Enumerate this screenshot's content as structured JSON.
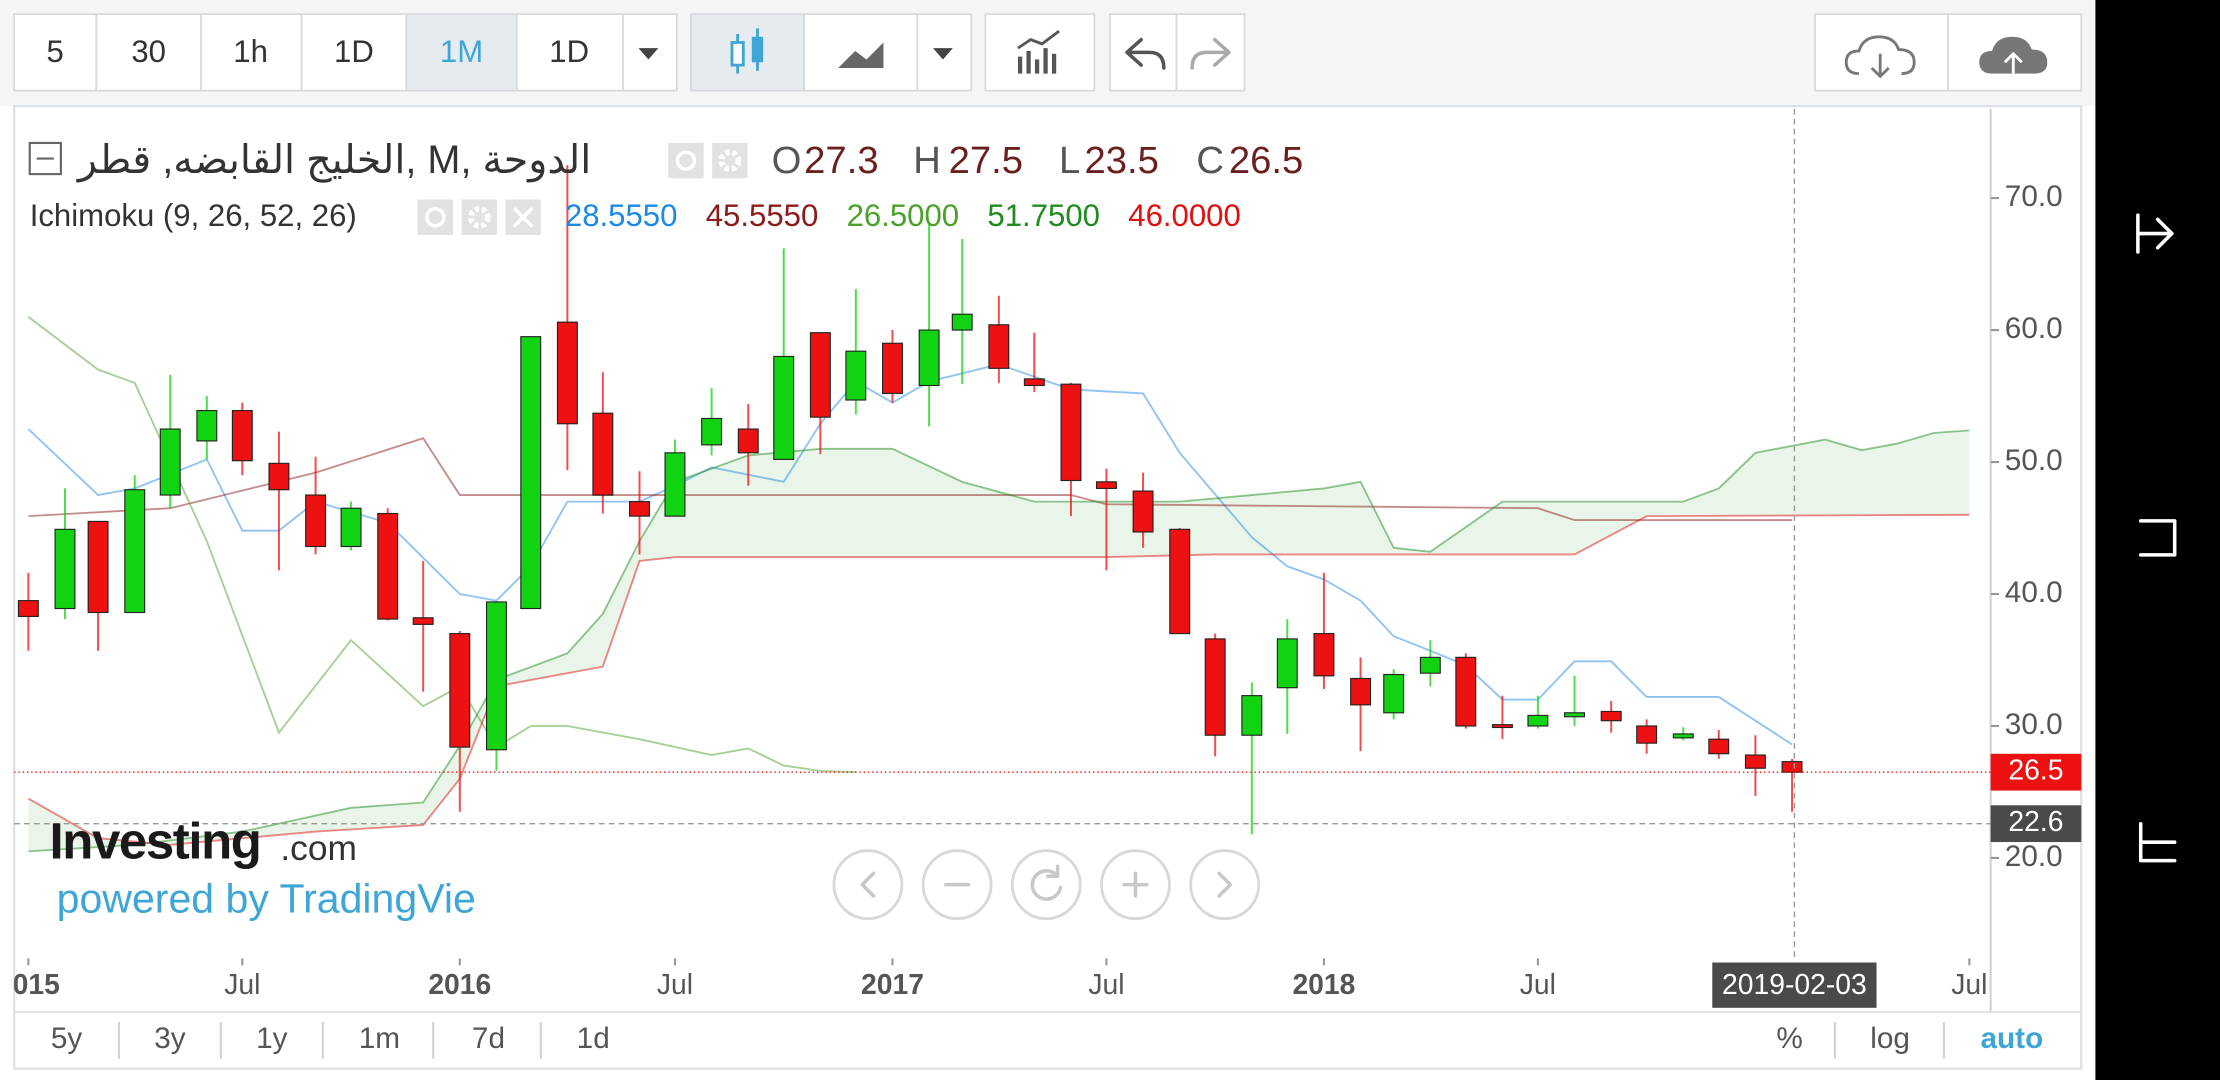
{
  "toolbar": {
    "intervals": [
      "5",
      "30",
      "1h",
      "1D",
      "1M",
      "1D"
    ]
  },
  "header": {
    "title": "الخليج القابضه, قطر, M, الدوحة",
    "ohlc_letters": [
      "O",
      "H",
      "L",
      "C"
    ]
  },
  "watermark": {
    "brand": "Investing",
    "domain": ".com",
    "powered": "powered by TradingVie"
  },
  "range_bar": {
    "ranges": [
      "5y",
      "3y",
      "1y",
      "1m",
      "7d",
      "1d"
    ],
    "scale_options": [
      "%",
      "log",
      "auto"
    ]
  },
  "chart_data": {
    "type": "candlestick",
    "up_color": "#12d312",
    "down_color": "#ee1111",
    "x": [
      "2015-01",
      "2015-02",
      "2015-03",
      "2015-04",
      "2015-05",
      "2015-06",
      "2015-07",
      "2015-08",
      "2015-09",
      "2015-10",
      "2015-11",
      "2015-12",
      "2016-01",
      "2016-02",
      "2016-03",
      "2016-04",
      "2016-05",
      "2016-06",
      "2016-07",
      "2016-08",
      "2016-09",
      "2016-10",
      "2016-11",
      "2016-12",
      "2017-01",
      "2017-02",
      "2017-03",
      "2017-04",
      "2017-05",
      "2017-06",
      "2017-07",
      "2017-08",
      "2017-09",
      "2017-10",
      "2017-11",
      "2017-12",
      "2018-01",
      "2018-02",
      "2018-03",
      "2018-04",
      "2018-05",
      "2018-06",
      "2018-07",
      "2018-08",
      "2018-09",
      "2018-10",
      "2018-11",
      "2018-12",
      "2019-01",
      "2019-02"
    ],
    "open": [
      39.5,
      38.9,
      45.5,
      38.6,
      47.5,
      51.6,
      53.9,
      49.9,
      47.5,
      43.6,
      46.1,
      38.2,
      37,
      28.2,
      38.9,
      60.6,
      53.7,
      47,
      45.9,
      51.3,
      52.5,
      50.2,
      59.8,
      54.7,
      59,
      55.8,
      60,
      60.4,
      56.3,
      55.9,
      48.5,
      47.8,
      44.9,
      36.6,
      29.3,
      32.9,
      37,
      33.6,
      31,
      34,
      35.2,
      30.1,
      30,
      30.7,
      31.1,
      30,
      29.1,
      29,
      27.8,
      27.3
    ],
    "high": [
      41.6,
      48,
      45.5,
      49,
      56.6,
      55,
      54.5,
      52.3,
      50.4,
      47,
      46.5,
      42.5,
      37.2,
      39.4,
      59.5,
      72.5,
      56.8,
      49.3,
      51.7,
      55.6,
      54.4,
      66.2,
      59.8,
      63.1,
      60,
      68,
      66.9,
      62.6,
      59.8,
      56,
      49.5,
      49.2,
      45,
      37,
      33.3,
      38.1,
      41.6,
      35.2,
      34.3,
      36.5,
      35.5,
      32.3,
      32.3,
      33.8,
      31.9,
      30.5,
      29.9,
      29.7,
      29.3,
      27.5
    ],
    "low": [
      35.7,
      38.1,
      35.7,
      38.6,
      46.5,
      50.2,
      49,
      41.8,
      43,
      43.3,
      38,
      32.6,
      23.5,
      26.6,
      38.9,
      49.4,
      46.1,
      43,
      45.9,
      50.5,
      48.2,
      50.2,
      50.6,
      53.6,
      54.5,
      52.7,
      55.9,
      56,
      55.3,
      45.9,
      41.8,
      43.5,
      37,
      27.7,
      21.8,
      29.4,
      32.8,
      28.1,
      30.5,
      33,
      29.8,
      29,
      29.8,
      30,
      29.5,
      27.9,
      28.9,
      27.5,
      24.7,
      23.5
    ],
    "close": [
      38.3,
      44.9,
      38.6,
      47.9,
      52.5,
      53.9,
      50.1,
      47.9,
      43.6,
      46.5,
      38.1,
      37.7,
      28.4,
      39.4,
      59.5,
      52.9,
      47.5,
      45.9,
      50.7,
      53.3,
      50.7,
      58,
      53.4,
      58.4,
      55.2,
      60,
      61.2,
      57.1,
      55.8,
      48.6,
      48,
      44.7,
      37,
      29.3,
      32.3,
      36.6,
      33.8,
      31.6,
      33.9,
      35.2,
      30,
      29.9,
      30.8,
      31,
      30.4,
      28.7,
      29.4,
      27.9,
      26.8,
      26.5
    ],
    "indicator": {
      "label": "Ichimoku (9, 26, 52, 26)",
      "lines": [
        {
          "color": "#1e88e5",
          "last": {
            "value": 28.555,
            "label": "28.5550"
          },
          "x": [
            "2015-01",
            "2015-03",
            "2015-04",
            "2015-06",
            "2015-07",
            "2015-08",
            "2015-09",
            "2015-11",
            "2016-01",
            "2016-02",
            "2016-03",
            "2016-04",
            "2016-06",
            "2016-07",
            "2016-08",
            "2016-10",
            "2016-11",
            "2016-12",
            "2017-01",
            "2017-02",
            "2017-04",
            "2017-06",
            "2017-08",
            "2017-09",
            "2017-11",
            "2017-12",
            "2018-01",
            "2018-02",
            "2018-03",
            "2018-04",
            "2018-05",
            "2018-06",
            "2018-07",
            "2018-08",
            "2018-09",
            "2018-10",
            "2018-12",
            "2019-01",
            "2019-02"
          ],
          "values": [
            52.5,
            47.5,
            48,
            50.2,
            44.8,
            44.8,
            47,
            45.4,
            40,
            39.5,
            42.1,
            47,
            47,
            48.2,
            49.6,
            48.5,
            52.9,
            56.1,
            54.5,
            56.1,
            57.4,
            55.5,
            55.2,
            50.7,
            44.3,
            42.1,
            41.1,
            39.5,
            36.8,
            35.7,
            34.6,
            32,
            32,
            34.9,
            34.9,
            32.2,
            32.2,
            30.4,
            28.6
          ]
        },
        {
          "color": "#8b1a1a",
          "last": {
            "value": 45.555,
            "label": "45.5550"
          },
          "x": [
            "2015-01",
            "2015-05",
            "2015-09",
            "2015-12",
            "2016-01",
            "2017-06",
            "2017-07",
            "2018-07",
            "2018-08",
            "2019-02"
          ],
          "values": [
            45.9,
            46.5,
            49.2,
            51.8,
            47.5,
            47.5,
            46.8,
            46.5,
            45.6,
            45.6
          ]
        },
        {
          "color": "#4ca02c",
          "last": {
            "value": 26.5,
            "label": "26.5000"
          },
          "x": [
            "2015-01",
            "2015-03",
            "2015-04",
            "2015-06",
            "2015-08",
            "2015-10",
            "2015-12",
            "2016-01",
            "2016-02",
            "2016-03",
            "2016-04",
            "2016-06",
            "2016-08",
            "2016-09",
            "2016-10",
            "2016-11",
            "2016-12"
          ],
          "values": [
            61,
            57,
            56,
            44,
            29.5,
            36.5,
            31.5,
            33,
            28.4,
            30,
            30,
            29,
            27.8,
            28.3,
            27,
            26.6,
            26.5
          ]
        },
        {
          "color": "#1e8c1e",
          "last": {
            "value": 51.75,
            "label": "51.7500"
          },
          "x": [
            "2015-01",
            "2015-04",
            "2015-07",
            "2015-10",
            "2015-12",
            "2016-01",
            "2016-02",
            "2016-04",
            "2016-05",
            "2016-06",
            "2016-07",
            "2016-09",
            "2016-11",
            "2017-01",
            "2017-03",
            "2017-05",
            "2017-07",
            "2017-09",
            "2017-11",
            "2018-01",
            "2018-02",
            "2018-03",
            "2018-04",
            "2018-06",
            "2018-09",
            "2018-11",
            "2018-12",
            "2019-01",
            "2019-03",
            "2019-04",
            "2019-05",
            "2019-06",
            "2019-07"
          ],
          "values": [
            20.5,
            21,
            22,
            23.8,
            24.2,
            28.5,
            33.5,
            35.5,
            38.5,
            44,
            48.5,
            50.5,
            51,
            51,
            48.5,
            47,
            47,
            47,
            47.5,
            48,
            48.5,
            43.5,
            43.2,
            47,
            47,
            47,
            48,
            50.7,
            51.7,
            50.9,
            51.4,
            52.2,
            52.4
          ]
        },
        {
          "color": "#e01010",
          "last": {
            "value": 46,
            "label": "46.0000"
          },
          "x": [
            "2015-01",
            "2015-03",
            "2015-05",
            "2015-09",
            "2015-12",
            "2016-01",
            "2016-02",
            "2016-05",
            "2016-06",
            "2016-07",
            "2017-07",
            "2017-10",
            "2018-08",
            "2018-10",
            "2019-07"
          ],
          "values": [
            24.5,
            21.5,
            21,
            22,
            22.5,
            26,
            33,
            34.5,
            42.5,
            42.8,
            42.8,
            43,
            43,
            45.9,
            46
          ]
        }
      ]
    },
    "xlim": [
      "2014-12-20",
      "2019-07-19"
    ],
    "xticks": [
      {
        "value": "2015-01-01",
        "label": "2015"
      },
      {
        "value": "2015-07-01",
        "label": "Jul"
      },
      {
        "value": "2016-01-01",
        "label": "2016"
      },
      {
        "value": "2016-07-01",
        "label": "Jul"
      },
      {
        "value": "2017-01-01",
        "label": "2017"
      },
      {
        "value": "2017-07-01",
        "label": "Jul"
      },
      {
        "value": "2018-01-01",
        "label": "2018"
      },
      {
        "value": "2018-07-01",
        "label": "Jul"
      },
      {
        "value": "2019-07-01",
        "label": "Jul"
      }
    ],
    "ylim": [
      12.4,
      76.75
    ],
    "yticks": [
      {
        "value": 20,
        "label": "20.0"
      },
      {
        "value": 30,
        "label": "30.0"
      },
      {
        "value": 40,
        "label": "40.0"
      },
      {
        "value": 50,
        "label": "50.0"
      },
      {
        "value": 60,
        "label": "60.0"
      },
      {
        "value": 70,
        "label": "70.0"
      }
    ],
    "crosshair": {
      "x": "2019-02-03",
      "y": 22.6
    }
  }
}
